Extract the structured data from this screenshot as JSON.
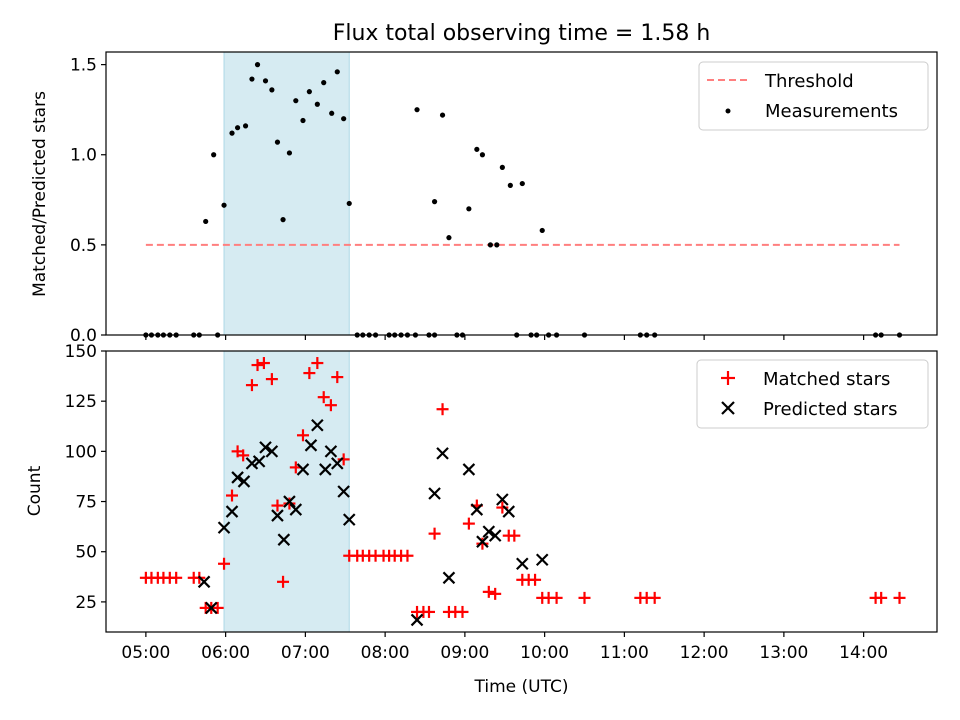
{
  "chart_data": [
    {
      "type": "scatter",
      "title": "Flux total observing time = 1.58 h",
      "ylabel": "Matched/Predicted stars",
      "xlim": [
        4.5,
        14.92
      ],
      "ylim": [
        0,
        1.57
      ],
      "yticks": [
        0.0,
        0.5,
        1.0,
        1.5
      ],
      "ytick_labels": [
        "0.0",
        "0.5",
        "1.0",
        "1.5"
      ],
      "shaded_region": [
        5.98,
        7.55
      ],
      "threshold": {
        "label": "Threshold",
        "y": 0.5,
        "x_range": [
          5.0,
          14.45
        ],
        "color": "#ff7f7f"
      },
      "legend": {
        "position": "top-right",
        "entries": [
          {
            "label": "Threshold",
            "kind": "line"
          },
          {
            "label": "Measurements",
            "kind": "dot"
          }
        ]
      },
      "series": [
        {
          "name": "Measurements",
          "color": "#000000",
          "points": [
            [
              5.75,
              0.63
            ],
            [
              5.85,
              1.0
            ],
            [
              5.98,
              0.72
            ],
            [
              6.08,
              1.12
            ],
            [
              6.15,
              1.15
            ],
            [
              6.25,
              1.16
            ],
            [
              6.33,
              1.42
            ],
            [
              6.4,
              1.5
            ],
            [
              6.5,
              1.41
            ],
            [
              6.58,
              1.36
            ],
            [
              6.65,
              1.07
            ],
            [
              6.72,
              0.64
            ],
            [
              6.8,
              1.01
            ],
            [
              6.88,
              1.3
            ],
            [
              6.97,
              1.19
            ],
            [
              7.05,
              1.35
            ],
            [
              7.15,
              1.28
            ],
            [
              7.23,
              1.4
            ],
            [
              7.33,
              1.23
            ],
            [
              7.4,
              1.46
            ],
            [
              7.48,
              1.2
            ],
            [
              7.55,
              0.73
            ],
            [
              8.4,
              1.25
            ],
            [
              8.62,
              0.74
            ],
            [
              8.72,
              1.22
            ],
            [
              8.8,
              0.54
            ],
            [
              9.05,
              0.7
            ],
            [
              9.15,
              1.03
            ],
            [
              9.22,
              1.0
            ],
            [
              9.32,
              0.5
            ],
            [
              9.4,
              0.5
            ],
            [
              9.47,
              0.93
            ],
            [
              9.57,
              0.83
            ],
            [
              9.72,
              0.84
            ],
            [
              9.97,
              0.58
            ],
            [
              5.0,
              0.0
            ],
            [
              5.07,
              0.0
            ],
            [
              5.15,
              0.0
            ],
            [
              5.22,
              0.0
            ],
            [
              5.3,
              0.0
            ],
            [
              5.38,
              0.0
            ],
            [
              5.6,
              0.0
            ],
            [
              5.67,
              0.0
            ],
            [
              5.9,
              0.0
            ],
            [
              7.65,
              0.0
            ],
            [
              7.72,
              0.0
            ],
            [
              7.8,
              0.0
            ],
            [
              7.88,
              0.0
            ],
            [
              8.05,
              0.0
            ],
            [
              8.12,
              0.0
            ],
            [
              8.2,
              0.0
            ],
            [
              8.28,
              0.0
            ],
            [
              8.38,
              0.0
            ],
            [
              8.55,
              0.0
            ],
            [
              8.62,
              0.0
            ],
            [
              8.9,
              0.0
            ],
            [
              8.97,
              0.0
            ],
            [
              9.65,
              0.0
            ],
            [
              9.83,
              0.0
            ],
            [
              9.9,
              0.0
            ],
            [
              10.05,
              0.0
            ],
            [
              10.15,
              0.0
            ],
            [
              10.5,
              0.0
            ],
            [
              11.2,
              0.0
            ],
            [
              11.28,
              0.0
            ],
            [
              11.38,
              0.0
            ],
            [
              14.15,
              0.0
            ],
            [
              14.22,
              0.0
            ],
            [
              14.45,
              0.0
            ]
          ]
        }
      ]
    },
    {
      "type": "scatter",
      "xlabel": "Time (UTC)",
      "ylabel": "Count",
      "xlim": [
        4.5,
        14.92
      ],
      "ylim": [
        10,
        150
      ],
      "yticks": [
        25,
        50,
        75,
        100,
        125,
        150
      ],
      "ytick_labels": [
        "25",
        "50",
        "75",
        "100",
        "125",
        "150"
      ],
      "xticks": [
        5,
        6,
        7,
        8,
        9,
        10,
        11,
        12,
        13,
        14
      ],
      "xtick_labels": [
        "05:00",
        "06:00",
        "07:00",
        "08:00",
        "09:00",
        "10:00",
        "11:00",
        "12:00",
        "13:00",
        "14:00"
      ],
      "shaded_region": [
        5.98,
        7.55
      ],
      "legend": {
        "position": "top-right",
        "entries": [
          {
            "label": "Matched stars",
            "kind": "plus"
          },
          {
            "label": "Predicted stars",
            "kind": "cross"
          }
        ]
      },
      "series": [
        {
          "name": "Matched stars",
          "marker": "+",
          "color": "#ff0000",
          "points": [
            [
              5.0,
              37
            ],
            [
              5.07,
              37
            ],
            [
              5.15,
              37
            ],
            [
              5.22,
              37
            ],
            [
              5.3,
              37
            ],
            [
              5.38,
              37
            ],
            [
              5.6,
              37
            ],
            [
              5.67,
              37
            ],
            [
              5.75,
              22
            ],
            [
              5.82,
              22
            ],
            [
              5.9,
              22
            ],
            [
              5.98,
              44
            ],
            [
              6.08,
              78
            ],
            [
              6.15,
              100
            ],
            [
              6.22,
              98
            ],
            [
              6.33,
              133
            ],
            [
              6.4,
              143
            ],
            [
              6.48,
              144
            ],
            [
              6.58,
              136
            ],
            [
              6.65,
              73
            ],
            [
              6.72,
              35
            ],
            [
              6.8,
              74
            ],
            [
              6.88,
              92
            ],
            [
              6.97,
              108
            ],
            [
              7.05,
              139
            ],
            [
              7.15,
              144
            ],
            [
              7.23,
              127
            ],
            [
              7.32,
              123
            ],
            [
              7.4,
              137
            ],
            [
              7.48,
              96
            ],
            [
              7.55,
              48
            ],
            [
              7.65,
              48
            ],
            [
              7.72,
              48
            ],
            [
              7.8,
              48
            ],
            [
              7.88,
              48
            ],
            [
              7.98,
              48
            ],
            [
              8.05,
              48
            ],
            [
              8.12,
              48
            ],
            [
              8.2,
              48
            ],
            [
              8.28,
              48
            ],
            [
              8.4,
              20
            ],
            [
              8.48,
              20
            ],
            [
              8.55,
              20
            ],
            [
              8.62,
              59
            ],
            [
              8.72,
              121
            ],
            [
              8.8,
              20
            ],
            [
              8.88,
              20
            ],
            [
              8.97,
              20
            ],
            [
              9.05,
              64
            ],
            [
              9.15,
              73
            ],
            [
              9.22,
              54
            ],
            [
              9.3,
              30
            ],
            [
              9.38,
              29
            ],
            [
              9.47,
              72
            ],
            [
              9.55,
              58
            ],
            [
              9.62,
              58
            ],
            [
              9.72,
              36
            ],
            [
              9.8,
              36
            ],
            [
              9.88,
              36
            ],
            [
              9.97,
              27
            ],
            [
              10.05,
              27
            ],
            [
              10.15,
              27
            ],
            [
              10.5,
              27
            ],
            [
              11.2,
              27
            ],
            [
              11.28,
              27
            ],
            [
              11.38,
              27
            ],
            [
              14.15,
              27
            ],
            [
              14.22,
              27
            ],
            [
              14.45,
              27
            ]
          ]
        },
        {
          "name": "Predicted stars",
          "marker": "x",
          "color": "#000000",
          "points": [
            [
              5.73,
              35
            ],
            [
              5.82,
              22
            ],
            [
              5.98,
              62
            ],
            [
              6.08,
              70
            ],
            [
              6.15,
              87
            ],
            [
              6.23,
              85
            ],
            [
              6.33,
              94
            ],
            [
              6.42,
              95
            ],
            [
              6.5,
              102
            ],
            [
              6.58,
              100
            ],
            [
              6.65,
              68
            ],
            [
              6.73,
              56
            ],
            [
              6.8,
              75
            ],
            [
              6.88,
              71
            ],
            [
              6.97,
              91
            ],
            [
              7.07,
              103
            ],
            [
              7.15,
              113
            ],
            [
              7.25,
              91
            ],
            [
              7.32,
              100
            ],
            [
              7.4,
              94
            ],
            [
              7.48,
              80
            ],
            [
              7.55,
              66
            ],
            [
              8.4,
              16
            ],
            [
              8.62,
              79
            ],
            [
              8.72,
              99
            ],
            [
              8.8,
              37
            ],
            [
              9.05,
              91
            ],
            [
              9.15,
              71
            ],
            [
              9.22,
              55
            ],
            [
              9.3,
              60
            ],
            [
              9.38,
              58
            ],
            [
              9.47,
              76
            ],
            [
              9.55,
              70
            ],
            [
              9.72,
              44
            ],
            [
              9.97,
              46
            ]
          ]
        }
      ]
    }
  ]
}
